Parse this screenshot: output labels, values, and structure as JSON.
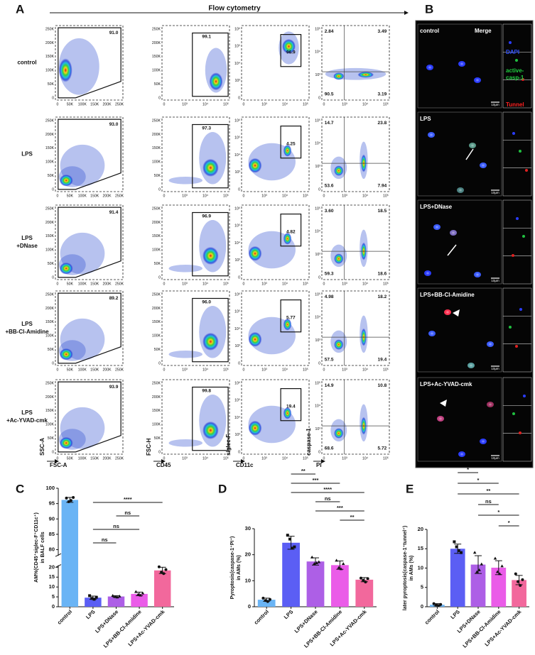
{
  "panel_a": {
    "label": "A",
    "title": "Flow cytometry",
    "rows": [
      {
        "name": [
          "control"
        ],
        "gates": [
          "91.0",
          "99.1",
          "96.9"
        ],
        "quadrants": [
          "2.84",
          "3.49",
          "90.5",
          "3.19"
        ]
      },
      {
        "name": [
          "LPS"
        ],
        "gates": [
          "93.0",
          "97.3",
          "4.25"
        ],
        "quadrants": [
          "14.7",
          "23.8",
          "53.6",
          "7.94"
        ]
      },
      {
        "name": [
          "LPS",
          "+DNase"
        ],
        "gates": [
          "91.4",
          "96.9",
          "4.82"
        ],
        "quadrants": [
          "3.60",
          "18.5",
          "59.3",
          "18.6"
        ]
      },
      {
        "name": [
          "LPS",
          "+BB-Cl-Amidine"
        ],
        "gates": [
          "89.2",
          "96.0",
          "5.77"
        ],
        "quadrants": [
          "4.98",
          "18.2",
          "57.5",
          "19.4"
        ]
      },
      {
        "name": [
          "LPS",
          "+Ac-YVAD-cmk"
        ],
        "gates": [
          "93.9",
          "99.8",
          "19.4"
        ],
        "quadrants": [
          "14.9",
          "10.8",
          "68.6",
          "5.72"
        ]
      }
    ],
    "columns": [
      {
        "x_label": "FSC-A",
        "y_label": "SSC-A",
        "xticks": [
          "0",
          "50K",
          "100K",
          "150K",
          "200K",
          "250K"
        ],
        "yticks": [
          "0",
          "50K",
          "100K",
          "150K",
          "200K",
          "250K"
        ]
      },
      {
        "x_label": "CD45",
        "y_label": "FSC-H",
        "xticks": [
          "0",
          "10³",
          "10⁴",
          "10⁵"
        ],
        "yticks": [
          "0",
          "50K",
          "100K",
          "150K",
          "200K",
          "250K"
        ]
      },
      {
        "x_label": "CD11c",
        "y_label": "siglec-F",
        "xticks": [
          "0",
          "10³",
          "10⁴",
          "10⁵"
        ],
        "yticks": [
          "0",
          "10³",
          "10⁴",
          "10⁵",
          "10⁶"
        ]
      },
      {
        "x_label": "PI",
        "y_label": "caspase-1",
        "xticks": [
          "0",
          "10³",
          "10⁴",
          "10⁵"
        ],
        "yticks": [
          "0",
          "10³",
          "10⁴",
          "10⁵"
        ]
      }
    ]
  },
  "panel_b": {
    "label": "B",
    "header": "Merge",
    "scale_bar": "10μm",
    "channels": [
      [
        "DAPI"
      ],
      [
        "active-",
        "casp-1"
      ],
      [
        "Tunnel"
      ]
    ],
    "rows": [
      "control",
      "LPS",
      "LPS+DNase",
      "LPS+BB-Cl-Amidine",
      "LPS+Ac-YVAD-cmk"
    ]
  },
  "chart_data": [
    {
      "type": "bar",
      "label": "C",
      "y_label": [
        "AM%(CD45⁺siglec-F⁺CD11c⁺)",
        "in BALF cells"
      ],
      "categories": [
        "control",
        "LPS",
        "LPS+DNase",
        "LPS+BB-Cl-Amidine",
        "LPS+Ac-YVAD-cmk"
      ],
      "colors": [
        "#6ab4f5",
        "#5b5ef4",
        "#ad5fe6",
        "#ea5ce8",
        "#f2689c"
      ],
      "values": [
        96.2,
        4.6,
        5.2,
        6.5,
        18.4
      ],
      "errors": [
        0.8,
        0.8,
        0.4,
        0.9,
        1.6
      ],
      "points": [
        [
          96.8,
          95.6,
          96.0,
          97.0
        ],
        [
          5.6,
          4.2,
          3.8,
          4.8
        ],
        [
          5.6,
          5.0,
          4.8,
          5.3
        ],
        [
          7.6,
          6.2,
          5.8,
          6.8
        ],
        [
          20.2,
          17.5,
          16.8,
          18.8
        ]
      ],
      "axis_segments": [
        {
          "ylim": [
            0,
            21
          ],
          "yticks": [
            0,
            5,
            10,
            15,
            20
          ]
        },
        {
          "ylim": [
            78,
            100
          ],
          "yticks": [
            80,
            85,
            90,
            95,
            100
          ]
        }
      ],
      "comparisons": [
        {
          "pair": [
            1,
            4
          ],
          "label": "****"
        },
        {
          "pair": [
            2,
            3
          ],
          "label": "ns"
        },
        {
          "pair": [
            1,
            3
          ],
          "label": "ns"
        },
        {
          "pair": [
            1,
            2
          ],
          "label": "ns"
        }
      ]
    },
    {
      "type": "bar",
      "label": "D",
      "y_label": [
        "Pyroptosis(caspase-1⁺PI⁺)",
        "in AMs (%)"
      ],
      "categories": [
        "control",
        "LPS",
        "LPS+DNase",
        "LPS+BB-Cl-Amidine",
        "LPS+Ac-YVAD-cmk"
      ],
      "colors": [
        "#6ab4f5",
        "#5b5ef4",
        "#ad5fe6",
        "#ea5ce8",
        "#f2689c"
      ],
      "values": [
        2.7,
        24.6,
        17.4,
        16.0,
        10.4
      ],
      "errors": [
        0.6,
        2.5,
        1.4,
        1.6,
        0.8
      ],
      "points": [
        [
          3.3,
          2.4,
          2.0,
          2.8
        ],
        [
          27.5,
          26.0,
          22.5,
          23.0
        ],
        [
          19.0,
          16.5,
          16.8,
          17.2
        ],
        [
          17.8,
          15.0,
          14.5,
          16.5
        ],
        [
          11.0,
          10.2,
          9.5,
          10.8
        ]
      ],
      "ylim": [
        0,
        30
      ],
      "yticks": [
        0,
        10,
        20,
        30
      ],
      "comparisons": [
        {
          "pair": [
            1,
            2
          ],
          "label": "**"
        },
        {
          "pair": [
            1,
            3
          ],
          "label": "***"
        },
        {
          "pair": [
            1,
            4
          ],
          "label": "****"
        },
        {
          "pair": [
            2,
            3
          ],
          "label": "ns"
        },
        {
          "pair": [
            2,
            4
          ],
          "label": "***"
        },
        {
          "pair": [
            3,
            4
          ],
          "label": "**"
        }
      ]
    },
    {
      "type": "bar",
      "label": "E",
      "y_label": [
        "later pyroptosis(caspase-1⁺tunnel⁺)",
        "in AMs (%)"
      ],
      "categories": [
        "control",
        "LPS",
        "LPS+DNase",
        "LPS+BB-Cl-Amidine",
        "LPS+Ac-YVAD-cmk"
      ],
      "colors": [
        "#6ab4f5",
        "#5b5ef4",
        "#ad5fe6",
        "#ea5ce8",
        "#f2689c"
      ],
      "values": [
        0.5,
        15.0,
        10.9,
        10.1,
        6.9
      ],
      "errors": [
        0.3,
        1.2,
        2.3,
        1.8,
        1.2
      ],
      "points": [
        [
          0.8,
          0.4,
          0.3,
          0.6
        ],
        [
          16.8,
          15.5,
          14.5,
          14.0
        ],
        [
          14.0,
          9.0,
          9.5,
          11.0
        ],
        [
          12.5,
          9.0,
          8.5,
          10.5
        ],
        [
          8.5,
          6.5,
          5.5,
          7.0
        ]
      ],
      "ylim": [
        0,
        20
      ],
      "yticks": [
        0,
        5,
        10,
        15,
        20
      ],
      "comparisons": [
        {
          "pair": [
            1,
            2
          ],
          "label": "*"
        },
        {
          "pair": [
            1,
            3
          ],
          "label": "*"
        },
        {
          "pair": [
            1,
            4
          ],
          "label": "**"
        },
        {
          "pair": [
            2,
            3
          ],
          "label": "ns"
        },
        {
          "pair": [
            2,
            4
          ],
          "label": "*"
        },
        {
          "pair": [
            3,
            4
          ],
          "label": "*"
        }
      ]
    }
  ]
}
